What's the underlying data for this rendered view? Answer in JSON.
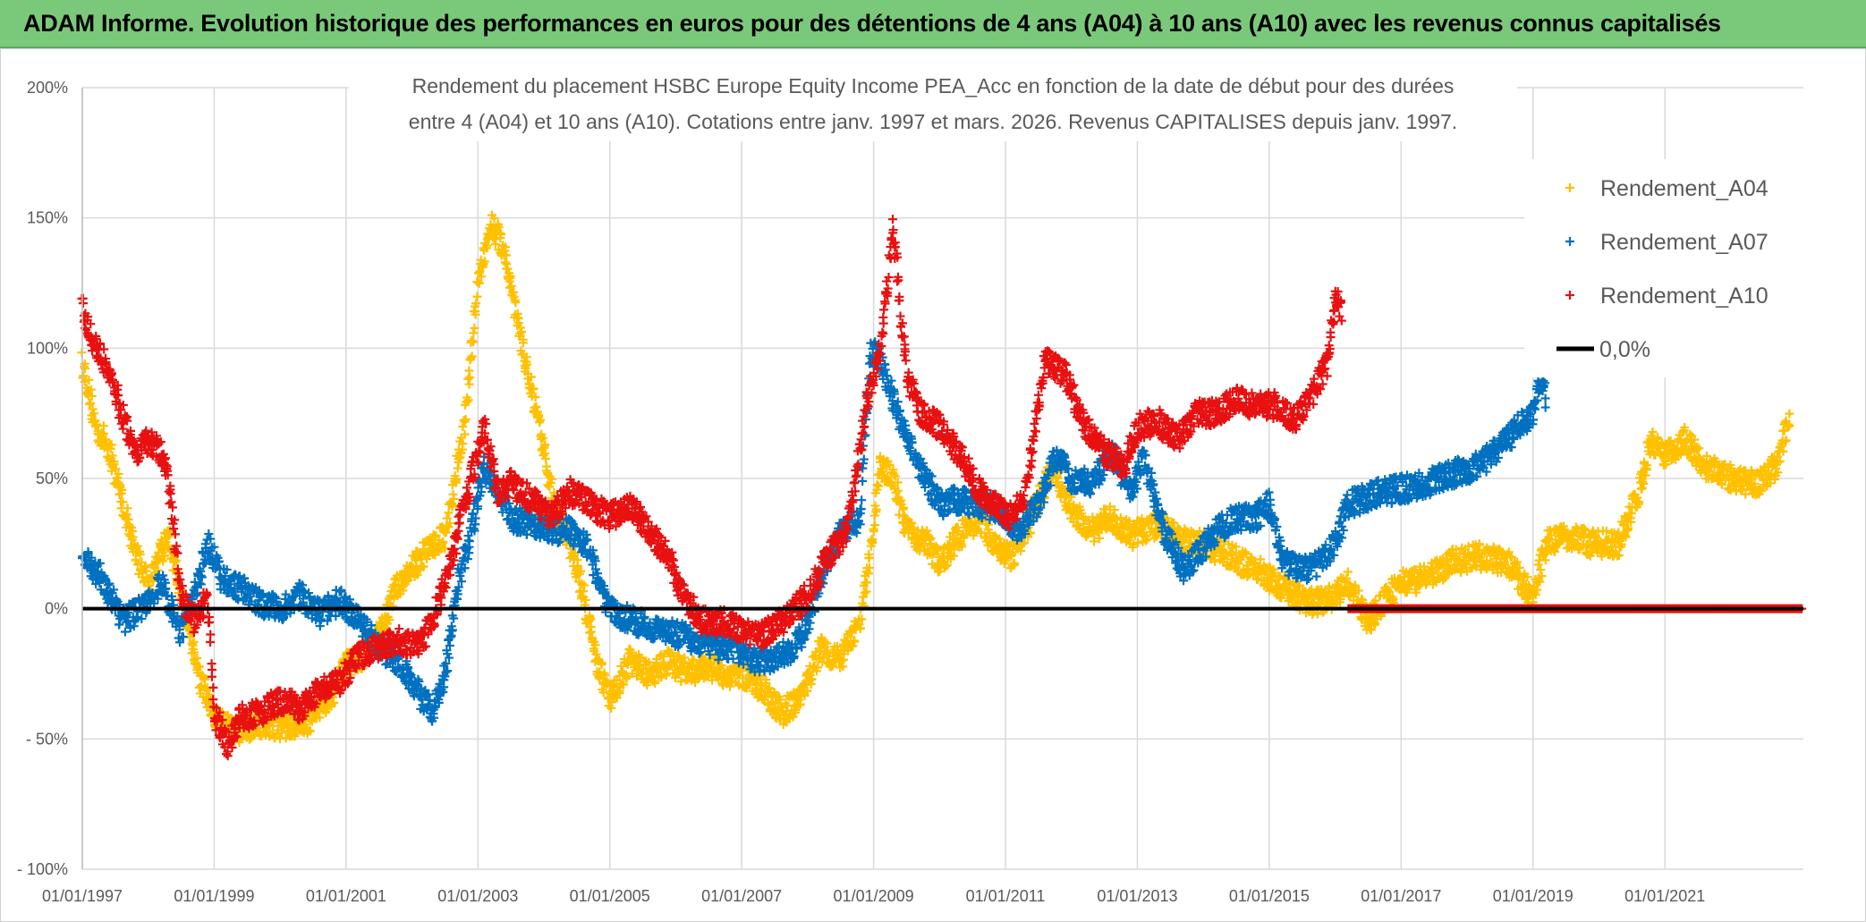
{
  "banner": {
    "title": "ADAM Informe. Evolution historique des performances en euros pour des détentions de 4 ans (A04) à 10 ans (A10) avec les revenus connus capitalisés"
  },
  "chart_data": {
    "type": "scatter",
    "title_lines": [
      "Rendement du placement HSBC Europe Equity Income PEA_Acc en fonction de la date de début pour des durées",
      "entre 4 (A04) et 10 ans (A10). Cotations entre janv. 1997 et mars. 2026. Revenus CAPITALISES depuis janv. 1997."
    ],
    "x_ticks": [
      "01/01/1997",
      "01/01/1999",
      "01/01/2001",
      "01/01/2003",
      "01/01/2005",
      "01/01/2007",
      "01/01/2009",
      "01/01/2011",
      "01/01/2013",
      "01/01/2015",
      "01/01/2017",
      "01/01/2019",
      "01/01/2021"
    ],
    "x_tick_years": [
      1997,
      1999,
      2001,
      2003,
      2005,
      2007,
      2009,
      2011,
      2013,
      2015,
      2017,
      2019,
      2021
    ],
    "xlim": [
      1997.0,
      2023.1
    ],
    "y_ticks": [
      200,
      150,
      100,
      50,
      0,
      -50,
      -100
    ],
    "y_tick_labels": [
      "200%",
      "150%",
      "100%",
      "50%",
      "0%",
      "- 50%",
      "- 100%"
    ],
    "ylim": [
      -100,
      200
    ],
    "series": [
      {
        "name": "Rendement_A04",
        "color": "#ffc000",
        "points": [
          [
            1997.0,
            95
          ],
          [
            1997.2,
            70
          ],
          [
            1997.4,
            62
          ],
          [
            1997.6,
            42
          ],
          [
            1997.8,
            22
          ],
          [
            1998.0,
            10
          ],
          [
            1998.3,
            28
          ],
          [
            1998.5,
            5
          ],
          [
            1998.8,
            -28
          ],
          [
            1999.0,
            -42
          ],
          [
            1999.3,
            -47
          ],
          [
            1999.7,
            -44
          ],
          [
            2000.0,
            -45
          ],
          [
            2000.4,
            -44
          ],
          [
            2000.8,
            -32
          ],
          [
            2001.0,
            -22
          ],
          [
            2001.3,
            -17
          ],
          [
            2001.5,
            -10
          ],
          [
            2001.8,
            10
          ],
          [
            2002.0,
            15
          ],
          [
            2002.2,
            22
          ],
          [
            2002.5,
            28
          ],
          [
            2002.8,
            70
          ],
          [
            2003.0,
            125
          ],
          [
            2003.2,
            148
          ],
          [
            2003.4,
            138
          ],
          [
            2003.6,
            110
          ],
          [
            2003.8,
            85
          ],
          [
            2004.0,
            60
          ],
          [
            2004.2,
            35
          ],
          [
            2004.4,
            25
          ],
          [
            2004.6,
            5
          ],
          [
            2004.8,
            -20
          ],
          [
            2005.0,
            -35
          ],
          [
            2005.3,
            -20
          ],
          [
            2005.6,
            -25
          ],
          [
            2005.9,
            -20
          ],
          [
            2006.2,
            -25
          ],
          [
            2006.5,
            -22
          ],
          [
            2006.8,
            -26
          ],
          [
            2007.0,
            -25
          ],
          [
            2007.3,
            -30
          ],
          [
            2007.6,
            -40
          ],
          [
            2007.9,
            -35
          ],
          [
            2008.2,
            -15
          ],
          [
            2008.5,
            -20
          ],
          [
            2008.8,
            -5
          ],
          [
            2009.0,
            30
          ],
          [
            2009.1,
            55
          ],
          [
            2009.3,
            50
          ],
          [
            2009.5,
            30
          ],
          [
            2009.8,
            25
          ],
          [
            2010.0,
            18
          ],
          [
            2010.3,
            28
          ],
          [
            2010.6,
            35
          ],
          [
            2010.9,
            22
          ],
          [
            2011.1,
            20
          ],
          [
            2011.4,
            35
          ],
          [
            2011.7,
            55
          ],
          [
            2012.0,
            38
          ],
          [
            2012.3,
            30
          ],
          [
            2012.6,
            35
          ],
          [
            2012.9,
            28
          ],
          [
            2013.2,
            32
          ],
          [
            2013.5,
            30
          ],
          [
            2013.8,
            25
          ],
          [
            2014.0,
            25
          ],
          [
            2014.4,
            20
          ],
          [
            2014.8,
            15
          ],
          [
            2015.1,
            10
          ],
          [
            2015.4,
            5
          ],
          [
            2015.7,
            2
          ],
          [
            2016.0,
            5
          ],
          [
            2016.2,
            10
          ],
          [
            2016.5,
            -5
          ],
          [
            2016.8,
            5
          ],
          [
            2017.0,
            10
          ],
          [
            2017.4,
            12
          ],
          [
            2017.8,
            18
          ],
          [
            2018.2,
            20
          ],
          [
            2018.6,
            18
          ],
          [
            2019.0,
            5
          ],
          [
            2019.2,
            25
          ],
          [
            2019.5,
            28
          ],
          [
            2019.9,
            25
          ],
          [
            2020.3,
            25
          ],
          [
            2020.6,
            45
          ],
          [
            2020.8,
            65
          ],
          [
            2021.0,
            58
          ],
          [
            2021.3,
            65
          ],
          [
            2021.6,
            55
          ],
          [
            2022.0,
            50
          ],
          [
            2022.4,
            48
          ],
          [
            2022.7,
            55
          ],
          [
            2022.9,
            75
          ]
        ]
      },
      {
        "name": "Rendement_A07",
        "color": "#0070c0",
        "points": [
          [
            1997.0,
            20
          ],
          [
            1997.3,
            12
          ],
          [
            1997.6,
            -5
          ],
          [
            1997.9,
            0
          ],
          [
            1998.2,
            10
          ],
          [
            1998.5,
            -10
          ],
          [
            1998.7,
            5
          ],
          [
            1998.9,
            25
          ],
          [
            1999.1,
            12
          ],
          [
            1999.4,
            8
          ],
          [
            1999.7,
            2
          ],
          [
            2000.0,
            0
          ],
          [
            2000.3,
            5
          ],
          [
            2000.6,
            -2
          ],
          [
            2000.9,
            3
          ],
          [
            2001.2,
            -5
          ],
          [
            2001.5,
            -15
          ],
          [
            2001.8,
            -20
          ],
          [
            2002.1,
            -32
          ],
          [
            2002.3,
            -40
          ],
          [
            2002.5,
            -25
          ],
          [
            2002.7,
            10
          ],
          [
            2002.9,
            30
          ],
          [
            2003.1,
            55
          ],
          [
            2003.3,
            45
          ],
          [
            2003.5,
            35
          ],
          [
            2003.8,
            32
          ],
          [
            2004.1,
            30
          ],
          [
            2004.4,
            30
          ],
          [
            2004.7,
            22
          ],
          [
            2004.9,
            5
          ],
          [
            2005.1,
            -2
          ],
          [
            2005.4,
            -5
          ],
          [
            2005.7,
            -8
          ],
          [
            2006.0,
            -10
          ],
          [
            2006.3,
            -12
          ],
          [
            2006.6,
            -15
          ],
          [
            2006.9,
            -15
          ],
          [
            2007.2,
            -20
          ],
          [
            2007.5,
            -20
          ],
          [
            2007.8,
            -15
          ],
          [
            2008.0,
            -5
          ],
          [
            2008.2,
            12
          ],
          [
            2008.5,
            30
          ],
          [
            2008.8,
            35
          ],
          [
            2008.95,
            100
          ],
          [
            2009.1,
            95
          ],
          [
            2009.3,
            80
          ],
          [
            2009.5,
            65
          ],
          [
            2009.8,
            50
          ],
          [
            2010.0,
            40
          ],
          [
            2010.3,
            42
          ],
          [
            2010.6,
            40
          ],
          [
            2010.9,
            38
          ],
          [
            2011.2,
            30
          ],
          [
            2011.5,
            40
          ],
          [
            2011.8,
            60
          ],
          [
            2012.0,
            50
          ],
          [
            2012.3,
            48
          ],
          [
            2012.6,
            60
          ],
          [
            2012.9,
            45
          ],
          [
            2013.1,
            58
          ],
          [
            2013.4,
            30
          ],
          [
            2013.7,
            15
          ],
          [
            2013.9,
            20
          ],
          [
            2014.2,
            30
          ],
          [
            2014.5,
            35
          ],
          [
            2014.8,
            35
          ],
          [
            2015.0,
            40
          ],
          [
            2015.2,
            18
          ],
          [
            2015.5,
            15
          ],
          [
            2015.8,
            18
          ],
          [
            2016.0,
            25
          ],
          [
            2016.2,
            40
          ],
          [
            2016.6,
            44
          ],
          [
            2017.0,
            46
          ],
          [
            2017.4,
            48
          ],
          [
            2017.8,
            52
          ],
          [
            2018.2,
            55
          ],
          [
            2018.5,
            62
          ],
          [
            2018.8,
            70
          ],
          [
            2019.0,
            75
          ],
          [
            2019.1,
            88
          ],
          [
            2019.2,
            80
          ]
        ]
      },
      {
        "name": "Rendement_A10",
        "color": "#e81010",
        "points": [
          [
            1997.0,
            115
          ],
          [
            1997.2,
            100
          ],
          [
            1997.4,
            92
          ],
          [
            1997.6,
            75
          ],
          [
            1997.8,
            60
          ],
          [
            1998.0,
            65
          ],
          [
            1998.2,
            60
          ],
          [
            1998.3,
            50
          ],
          [
            1998.5,
            5
          ],
          [
            1998.7,
            -5
          ],
          [
            1998.9,
            5
          ],
          [
            1999.0,
            -40
          ],
          [
            1999.2,
            -52
          ],
          [
            1999.4,
            -42
          ],
          [
            1999.7,
            -40
          ],
          [
            2000.0,
            -35
          ],
          [
            2000.3,
            -38
          ],
          [
            2000.6,
            -32
          ],
          [
            2000.9,
            -28
          ],
          [
            2001.2,
            -18
          ],
          [
            2001.5,
            -15
          ],
          [
            2001.8,
            -12
          ],
          [
            2002.1,
            -15
          ],
          [
            2002.3,
            -5
          ],
          [
            2002.5,
            10
          ],
          [
            2002.7,
            30
          ],
          [
            2002.9,
            50
          ],
          [
            2003.1,
            70
          ],
          [
            2003.3,
            45
          ],
          [
            2003.5,
            48
          ],
          [
            2003.8,
            42
          ],
          [
            2004.1,
            35
          ],
          [
            2004.4,
            45
          ],
          [
            2004.7,
            40
          ],
          [
            2005.0,
            35
          ],
          [
            2005.3,
            40
          ],
          [
            2005.6,
            30
          ],
          [
            2005.9,
            20
          ],
          [
            2006.1,
            5
          ],
          [
            2006.4,
            -5
          ],
          [
            2006.7,
            -5
          ],
          [
            2007.0,
            -8
          ],
          [
            2007.3,
            -10
          ],
          [
            2007.6,
            -5
          ],
          [
            2008.0,
            5
          ],
          [
            2008.3,
            20
          ],
          [
            2008.6,
            30
          ],
          [
            2008.9,
            80
          ],
          [
            2009.1,
            100
          ],
          [
            2009.3,
            145
          ],
          [
            2009.5,
            90
          ],
          [
            2009.7,
            75
          ],
          [
            2010.0,
            70
          ],
          [
            2010.3,
            60
          ],
          [
            2010.6,
            45
          ],
          [
            2010.8,
            40
          ],
          [
            2011.1,
            35
          ],
          [
            2011.3,
            45
          ],
          [
            2011.6,
            95
          ],
          [
            2011.9,
            90
          ],
          [
            2012.2,
            70
          ],
          [
            2012.5,
            60
          ],
          [
            2012.8,
            55
          ],
          [
            2013.0,
            70
          ],
          [
            2013.3,
            72
          ],
          [
            2013.6,
            65
          ],
          [
            2013.9,
            75
          ],
          [
            2014.2,
            75
          ],
          [
            2014.5,
            80
          ],
          [
            2014.8,
            78
          ],
          [
            2015.1,
            78
          ],
          [
            2015.4,
            72
          ],
          [
            2015.7,
            85
          ],
          [
            2015.9,
            95
          ],
          [
            2016.0,
            120
          ],
          [
            2016.1,
            115
          ]
        ]
      }
    ],
    "zero_tail": {
      "name": "Rendement_A10",
      "from": 2016.2,
      "to": 2023.1,
      "color": "#e81010"
    },
    "reference_line": {
      "label": "0,0%",
      "value": 0,
      "color": "#000000"
    },
    "legend": {
      "position": "top-right",
      "entries": [
        {
          "label": "Rendement_A04",
          "color": "#ffc000",
          "marker": "+"
        },
        {
          "label": "Rendement_A07",
          "color": "#0070c0",
          "marker": "+"
        },
        {
          "label": "Rendement_A10",
          "color": "#e81010",
          "marker": "+"
        },
        {
          "label": "0,0%",
          "color": "#000000",
          "marker": "line"
        }
      ]
    }
  }
}
